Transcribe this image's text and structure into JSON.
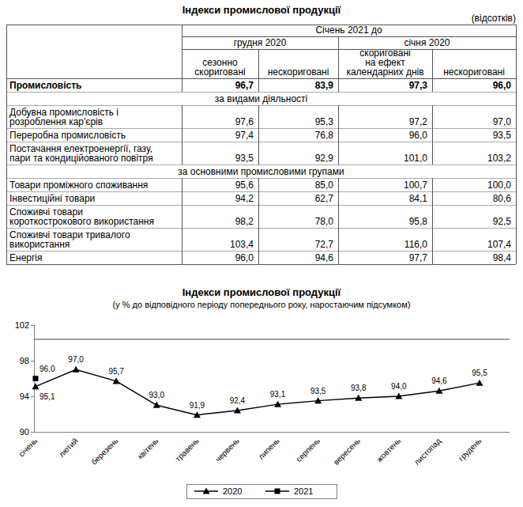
{
  "header": {
    "title": "Індекси промислової продукції",
    "unit": "(відсотків)"
  },
  "table": {
    "period": "Січень 2021 до",
    "groups": [
      "грудня 2020",
      "січня 2020"
    ],
    "columns": [
      [
        "сезонно",
        "скориговані"
      ],
      [
        "нескориговані"
      ],
      [
        "скориговані",
        "на ефект",
        "календарних днів"
      ],
      [
        "нескориговані"
      ]
    ],
    "rows": [
      {
        "label": [
          "Промисловість"
        ],
        "values": [
          "96,7",
          "83,9",
          "97,3",
          "96,0"
        ],
        "bold": true
      },
      {
        "section": "за видами діяльності"
      },
      {
        "label": [
          "Добувна промисловість і",
          "розроблення кар'єрів"
        ],
        "values": [
          "97,6",
          "95,3",
          "97,2",
          "97,0"
        ]
      },
      {
        "label": [
          "Переробна промисловість"
        ],
        "values": [
          "97,4",
          "76,8",
          "96,0",
          "93,5"
        ]
      },
      {
        "label": [
          "Постачання електроенергії, газу,",
          "пари та кондиційованого повітря"
        ],
        "values": [
          "93,5",
          "92,9",
          "101,0",
          "103,2"
        ]
      },
      {
        "section": "за основними промисловими групами"
      },
      {
        "label": [
          "Товари проміжного споживання"
        ],
        "values": [
          "95,6",
          "85,0",
          "100,7",
          "100,0"
        ]
      },
      {
        "label": [
          "Інвестиційні товари"
        ],
        "values": [
          "94,2",
          "62,7",
          "84,1",
          "80,6"
        ]
      },
      {
        "label": [
          "Споживчі товари",
          "короткострокового використання"
        ],
        "values": [
          "98,2",
          "78,0",
          "95,8",
          "92,5"
        ]
      },
      {
        "label": [
          "Споживчі товари тривалого",
          "використання"
        ],
        "values": [
          "103,4",
          "72,7",
          "116,0",
          "107,4"
        ]
      },
      {
        "label": [
          "Енергія"
        ],
        "values": [
          "96,0",
          "94,6",
          "97,7",
          "98,4"
        ]
      }
    ]
  },
  "chart_data": {
    "type": "line",
    "title": "Індекси промислової продукції",
    "subtitle": "(у % до відповідного періоду попереднього року, наростаючим підсумком)",
    "categories": [
      "січень",
      "лютий",
      "березень",
      "квітень",
      "травень",
      "червень",
      "липень",
      "серпень",
      "вересень",
      "жовтень",
      "листопад",
      "грудень"
    ],
    "series": [
      {
        "name": "2020",
        "color": "#000000",
        "marker": "triangle",
        "values": [
          95.1,
          97.0,
          95.7,
          93.0,
          91.9,
          92.4,
          93.1,
          93.5,
          93.8,
          94.0,
          94.6,
          95.5
        ],
        "value_labels": [
          "95,1",
          "97,0",
          "95,7",
          "93,0",
          "91,9",
          "92,4",
          "93,1",
          "93,5",
          "93,8",
          "94,0",
          "94,6",
          "95,5"
        ]
      },
      {
        "name": "2021",
        "color": "#000000",
        "marker": "square",
        "values": [
          96.0,
          null,
          null,
          null,
          null,
          null,
          null,
          null,
          null,
          null,
          null,
          null
        ],
        "value_labels": [
          "96,0",
          null,
          null,
          null,
          null,
          null,
          null,
          null,
          null,
          null,
          null,
          null
        ]
      }
    ],
    "ylim": [
      90,
      102
    ],
    "yticks": [
      90,
      94,
      98,
      102
    ],
    "reference_line": 100.4,
    "data_labels": true,
    "legend": "bottom",
    "grid": false
  }
}
